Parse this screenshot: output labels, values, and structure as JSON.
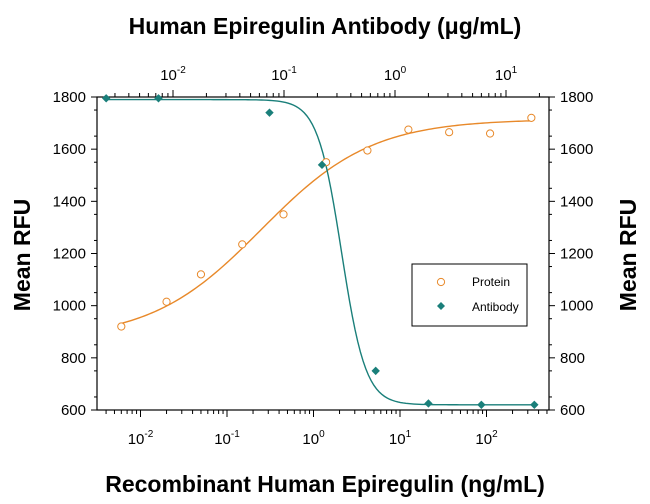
{
  "chart_data": {
    "type": "scatter",
    "title": "Human Epiregulin Antibody (μg/mL)",
    "xlabel": "Recombinant Human Epiregulin (ng/mL)",
    "ylabel": "Mean RFU",
    "ylabel_right": "Mean RFU",
    "ylim": [
      600,
      1800
    ],
    "yticks": [
      "600",
      "800",
      "1000",
      "1200",
      "1400",
      "1600",
      "1800"
    ],
    "x_bottom": {
      "scale": "log",
      "ticks": [
        {
          "value": 0.01,
          "base": "10",
          "exp": "-2"
        },
        {
          "value": 0.1,
          "base": "10",
          "exp": "-1"
        },
        {
          "value": 1,
          "base": "10",
          "exp": "0"
        },
        {
          "value": 10,
          "base": "10",
          "exp": "1"
        },
        {
          "value": 100,
          "base": "10",
          "exp": "2"
        }
      ]
    },
    "x_top": {
      "scale": "log",
      "ticks": [
        {
          "value": 0.01,
          "base": "10",
          "exp": "-2"
        },
        {
          "value": 0.1,
          "base": "10",
          "exp": "-1"
        },
        {
          "value": 1,
          "base": "10",
          "exp": "0"
        },
        {
          "value": 10,
          "base": "10",
          "exp": "1"
        }
      ]
    },
    "legend_position": "right-middle",
    "series": [
      {
        "name": "Protein",
        "axis": "bottom",
        "marker": "open-circle",
        "color": "#E8892A",
        "x": [
          0.006,
          0.02,
          0.05,
          0.15,
          0.45,
          1.4,
          4.2,
          12.5,
          37,
          110,
          330
        ],
        "y": [
          920,
          1015,
          1120,
          1235,
          1350,
          1550,
          1595,
          1675,
          1665,
          1660,
          1720
        ]
      },
      {
        "name": "Antibody",
        "axis": "top",
        "marker": "filled-diamond",
        "color": "#1A7F7A",
        "x": [
          0.0025,
          0.0074,
          0.074,
          0.22,
          0.67,
          2,
          6,
          18
        ],
        "y": [
          1795,
          1795,
          1740,
          1540,
          750,
          625,
          620,
          620
        ]
      }
    ]
  }
}
